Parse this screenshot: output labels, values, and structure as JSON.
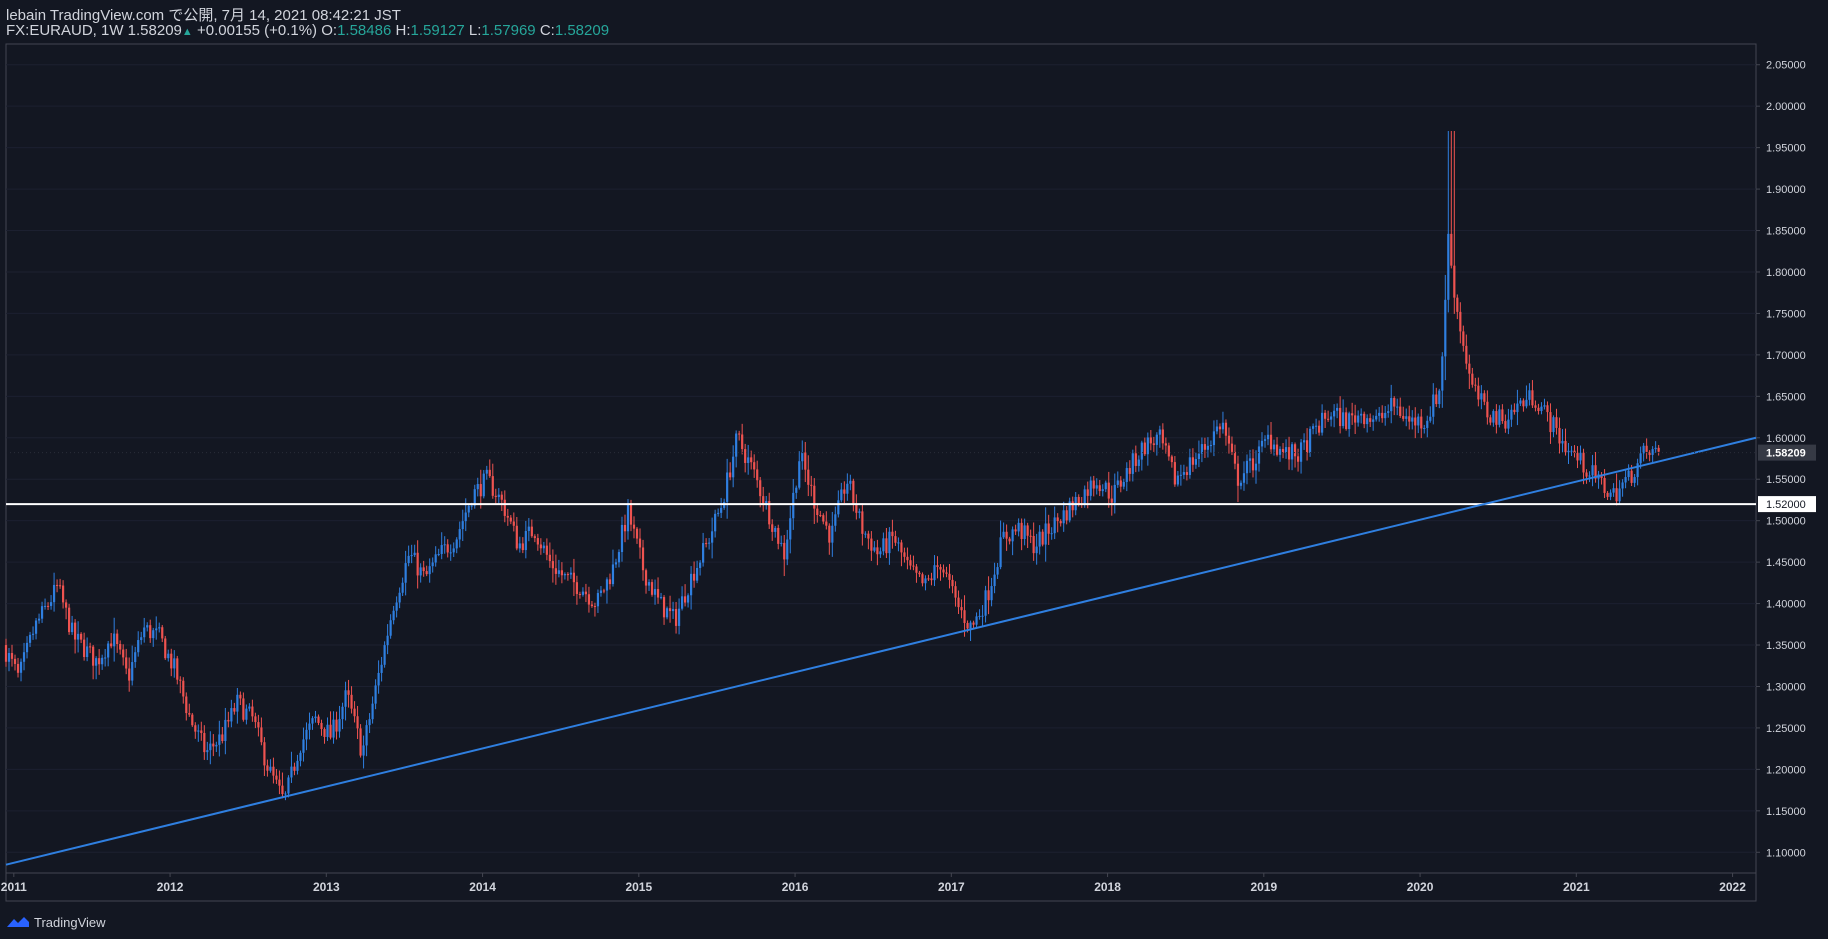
{
  "header": {
    "publish_info": "lebain TradingView.com で公開, 7月 14, 2021 08:42:21 JST",
    "symbol_info": "FX:EURAUD, 1W 1.58209",
    "change_arrow": "▲",
    "change": "+0.00155 (+0.1%)",
    "o_label": "O:",
    "o_value": "1.58486",
    "h_label": "H:",
    "h_value": "1.59127",
    "l_label": "L:",
    "l_value": "1.57969",
    "c_label": "C:",
    "c_value": "1.58209"
  },
  "footer": {
    "brand": "TradingView"
  },
  "colors": {
    "background": "#131722",
    "up": "#2f7fe0",
    "down": "#ef5350",
    "trendline": "#2f7fe0",
    "hline": "#ffffff",
    "axis_text": "#d1d4dc",
    "accent": "#26a69a"
  },
  "chart_data": {
    "type": "candlestick",
    "symbol": "FX:EURAUD",
    "timeframe": "1W",
    "x_range": [
      2010.95,
      2022.15
    ],
    "ylim": [
      1.075,
      2.075
    ],
    "y_ticks": [
      "2.05000",
      "2.00000",
      "1.95000",
      "1.90000",
      "1.85000",
      "1.80000",
      "1.75000",
      "1.70000",
      "1.65000",
      "1.60000",
      "1.55000",
      "1.50000",
      "1.45000",
      "1.40000",
      "1.35000",
      "1.30000",
      "1.25000",
      "1.20000",
      "1.15000",
      "1.10000"
    ],
    "x_ticks": [
      {
        "label": "2011",
        "x": 2011
      },
      {
        "label": "2012",
        "x": 2012
      },
      {
        "label": "2013",
        "x": 2013
      },
      {
        "label": "2014",
        "x": 2014
      },
      {
        "label": "2015",
        "x": 2015
      },
      {
        "label": "2016",
        "x": 2016
      },
      {
        "label": "2017",
        "x": 2017
      },
      {
        "label": "2018",
        "x": 2018
      },
      {
        "label": "2019",
        "x": 2019
      },
      {
        "label": "2020",
        "x": 2020
      },
      {
        "label": "2021",
        "x": 2021
      },
      {
        "label": "2022",
        "x": 2022
      }
    ],
    "price_series": [
      [
        2010.95,
        1.35
      ],
      [
        2011.05,
        1.31
      ],
      [
        2011.15,
        1.37
      ],
      [
        2011.3,
        1.42
      ],
      [
        2011.4,
        1.36
      ],
      [
        2011.55,
        1.33
      ],
      [
        2011.65,
        1.36
      ],
      [
        2011.75,
        1.31
      ],
      [
        2011.85,
        1.37
      ],
      [
        2011.95,
        1.36
      ],
      [
        2012.05,
        1.32
      ],
      [
        2012.15,
        1.26
      ],
      [
        2012.25,
        1.22
      ],
      [
        2012.35,
        1.24
      ],
      [
        2012.45,
        1.28
      ],
      [
        2012.55,
        1.26
      ],
      [
        2012.65,
        1.2
      ],
      [
        2012.75,
        1.16
      ],
      [
        2012.85,
        1.23
      ],
      [
        2012.95,
        1.26
      ],
      [
        2013.05,
        1.24
      ],
      [
        2013.15,
        1.29
      ],
      [
        2013.25,
        1.22
      ],
      [
        2013.35,
        1.31
      ],
      [
        2013.45,
        1.4
      ],
      [
        2013.55,
        1.46
      ],
      [
        2013.65,
        1.43
      ],
      [
        2013.75,
        1.46
      ],
      [
        2013.85,
        1.48
      ],
      [
        2013.95,
        1.53
      ],
      [
        2014.05,
        1.55
      ],
      [
        2014.15,
        1.52
      ],
      [
        2014.25,
        1.47
      ],
      [
        2014.35,
        1.49
      ],
      [
        2014.45,
        1.45
      ],
      [
        2014.55,
        1.43
      ],
      [
        2014.65,
        1.42
      ],
      [
        2014.75,
        1.4
      ],
      [
        2014.85,
        1.44
      ],
      [
        2014.95,
        1.51
      ],
      [
        2015.05,
        1.44
      ],
      [
        2015.15,
        1.4
      ],
      [
        2015.25,
        1.38
      ],
      [
        2015.35,
        1.43
      ],
      [
        2015.45,
        1.47
      ],
      [
        2015.55,
        1.52
      ],
      [
        2015.65,
        1.6
      ],
      [
        2015.75,
        1.56
      ],
      [
        2015.85,
        1.51
      ],
      [
        2015.95,
        1.46
      ],
      [
        2016.05,
        1.58
      ],
      [
        2016.15,
        1.52
      ],
      [
        2016.25,
        1.48
      ],
      [
        2016.35,
        1.55
      ],
      [
        2016.45,
        1.49
      ],
      [
        2016.55,
        1.46
      ],
      [
        2016.65,
        1.48
      ],
      [
        2016.75,
        1.44
      ],
      [
        2016.85,
        1.42
      ],
      [
        2016.95,
        1.45
      ],
      [
        2017.05,
        1.4
      ],
      [
        2017.15,
        1.37
      ],
      [
        2017.25,
        1.41
      ],
      [
        2017.35,
        1.48
      ],
      [
        2017.45,
        1.49
      ],
      [
        2017.55,
        1.47
      ],
      [
        2017.65,
        1.49
      ],
      [
        2017.75,
        1.51
      ],
      [
        2017.85,
        1.53
      ],
      [
        2017.95,
        1.55
      ],
      [
        2018.05,
        1.53
      ],
      [
        2018.15,
        1.56
      ],
      [
        2018.25,
        1.59
      ],
      [
        2018.35,
        1.6
      ],
      [
        2018.45,
        1.55
      ],
      [
        2018.55,
        1.57
      ],
      [
        2018.65,
        1.59
      ],
      [
        2018.75,
        1.62
      ],
      [
        2018.85,
        1.55
      ],
      [
        2018.95,
        1.57
      ],
      [
        2019.05,
        1.6
      ],
      [
        2019.15,
        1.58
      ],
      [
        2019.25,
        1.58
      ],
      [
        2019.35,
        1.61
      ],
      [
        2019.45,
        1.63
      ],
      [
        2019.55,
        1.62
      ],
      [
        2019.65,
        1.63
      ],
      [
        2019.75,
        1.62
      ],
      [
        2019.85,
        1.64
      ],
      [
        2019.95,
        1.62
      ],
      [
        2020.05,
        1.62
      ],
      [
        2020.15,
        1.66
      ],
      [
        2020.2,
        1.84
      ],
      [
        2020.25,
        1.76
      ],
      [
        2020.35,
        1.66
      ],
      [
        2020.45,
        1.63
      ],
      [
        2020.55,
        1.62
      ],
      [
        2020.65,
        1.64
      ],
      [
        2020.75,
        1.65
      ],
      [
        2020.85,
        1.62
      ],
      [
        2020.95,
        1.59
      ],
      [
        2021.05,
        1.57
      ],
      [
        2021.15,
        1.55
      ],
      [
        2021.25,
        1.53
      ],
      [
        2021.35,
        1.55
      ],
      [
        2021.45,
        1.58
      ],
      [
        2021.53,
        1.58209
      ]
    ],
    "horizontal_line": {
      "value": 1.52,
      "label": "1.52000"
    },
    "trendline": {
      "from": [
        2010.95,
        1.085
      ],
      "to": [
        2022.15,
        1.6
      ]
    },
    "last_price": {
      "value": 1.58209,
      "label": "1.58209"
    }
  }
}
